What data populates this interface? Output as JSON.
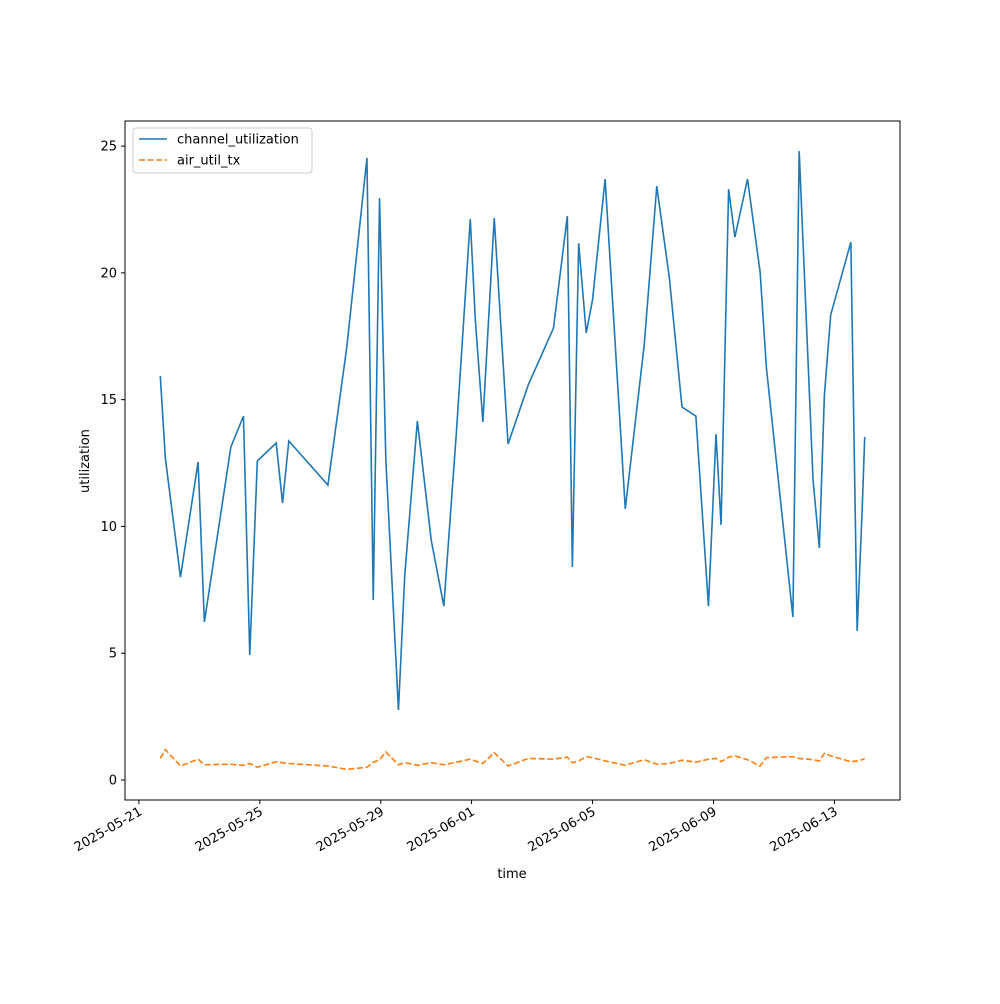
{
  "chart_data": {
    "type": "line",
    "xlabel": "time",
    "ylabel": "utilization",
    "x": [
      "2025-05-21T17:00",
      "2025-05-21T21:00",
      "2025-05-22T09:00",
      "2025-05-22T23:00",
      "2025-05-23T04:00",
      "2025-05-24T01:00",
      "2025-05-24T11:00",
      "2025-05-24T16:00",
      "2025-05-24T22:00",
      "2025-05-25T13:00",
      "2025-05-25T18:00",
      "2025-05-25T23:00",
      "2025-05-27T06:00",
      "2025-05-27T21:00",
      "2025-05-28T13:00",
      "2025-05-28T18:00",
      "2025-05-28T23:00",
      "2025-05-29T04:00",
      "2025-05-29T14:00",
      "2025-05-29T19:00",
      "2025-05-30T05:00",
      "2025-05-30T16:00",
      "2025-05-31T02:00",
      "2025-05-31T12:00",
      "2025-05-31T23:00",
      "2025-06-01T03:00",
      "2025-06-01T09:00",
      "2025-06-01T18:00",
      "2025-06-02T05:00",
      "2025-06-02T21:00",
      "2025-06-03T17:00",
      "2025-06-04T04:00",
      "2025-06-04T08:00",
      "2025-06-04T13:00",
      "2025-06-04T19:00",
      "2025-06-05T00:00",
      "2025-06-05T10:00",
      "2025-06-06T02:00",
      "2025-06-06T17:00",
      "2025-06-07T03:00",
      "2025-06-07T13:00",
      "2025-06-07T23:00",
      "2025-06-08T10:00",
      "2025-06-08T20:00",
      "2025-06-09T02:00",
      "2025-06-09T06:00",
      "2025-06-09T12:00",
      "2025-06-09T17:00",
      "2025-06-10T03:00",
      "2025-06-10T13:00",
      "2025-06-10T18:00",
      "2025-06-11T15:00",
      "2025-06-11T20:00",
      "2025-06-12T07:00",
      "2025-06-12T12:00",
      "2025-06-12T16:00",
      "2025-06-12T21:00",
      "2025-06-13T13:00",
      "2025-06-13T18:00",
      "2025-06-13T22:00",
      "2025-06-14T00:00"
    ],
    "series": [
      {
        "name": "channel_utilization",
        "color": "#1f77b4",
        "dash": "solid",
        "values": [
          15.93,
          12.7,
          8.0,
          12.54,
          6.23,
          13.13,
          14.35,
          4.93,
          12.58,
          13.29,
          10.92,
          13.37,
          11.63,
          17.07,
          24.53,
          7.1,
          22.95,
          12.62,
          2.76,
          8.08,
          14.16,
          9.46,
          6.86,
          13.72,
          22.12,
          18.14,
          14.12,
          22.16,
          13.25,
          15.58,
          17.82,
          22.24,
          8.4,
          21.17,
          17.63,
          18.93,
          23.7,
          10.69,
          17.15,
          23.42,
          19.79,
          14.71,
          14.35,
          6.86,
          13.64,
          10.06,
          23.3,
          21.41,
          23.7,
          20.03,
          16.25,
          6.43,
          24.8,
          11.83,
          9.15,
          15.18,
          18.34,
          21.21,
          5.88,
          10.69,
          13.53
        ]
      },
      {
        "name": "air_util_tx",
        "color": "#ff7f0e",
        "dash": "dashed",
        "values": [
          0.85,
          1.2,
          0.55,
          0.82,
          0.6,
          0.62,
          0.58,
          0.65,
          0.5,
          0.72,
          0.68,
          0.65,
          0.55,
          0.42,
          0.5,
          0.7,
          0.8,
          1.1,
          0.6,
          0.68,
          0.58,
          0.68,
          0.6,
          0.7,
          0.82,
          0.75,
          0.65,
          1.08,
          0.55,
          0.85,
          0.82,
          0.9,
          0.68,
          0.75,
          0.92,
          0.88,
          0.75,
          0.58,
          0.8,
          0.62,
          0.65,
          0.78,
          0.7,
          0.82,
          0.85,
          0.72,
          0.9,
          0.95,
          0.8,
          0.55,
          0.88,
          0.92,
          0.85,
          0.8,
          0.75,
          1.05,
          0.95,
          0.72,
          0.75,
          0.8,
          0.85
        ]
      }
    ],
    "xlim": [
      "2025-05-20T13:00",
      "2025-06-15T04:00"
    ],
    "xticks": [
      "2025-05-21",
      "2025-05-25",
      "2025-05-29",
      "2025-06-01",
      "2025-06-05",
      "2025-06-09",
      "2025-06-13"
    ],
    "ylim": [
      -0.79,
      25.99
    ],
    "yticks": [
      0,
      5,
      10,
      15,
      20,
      25
    ],
    "grid": false,
    "legend": "upper left"
  }
}
